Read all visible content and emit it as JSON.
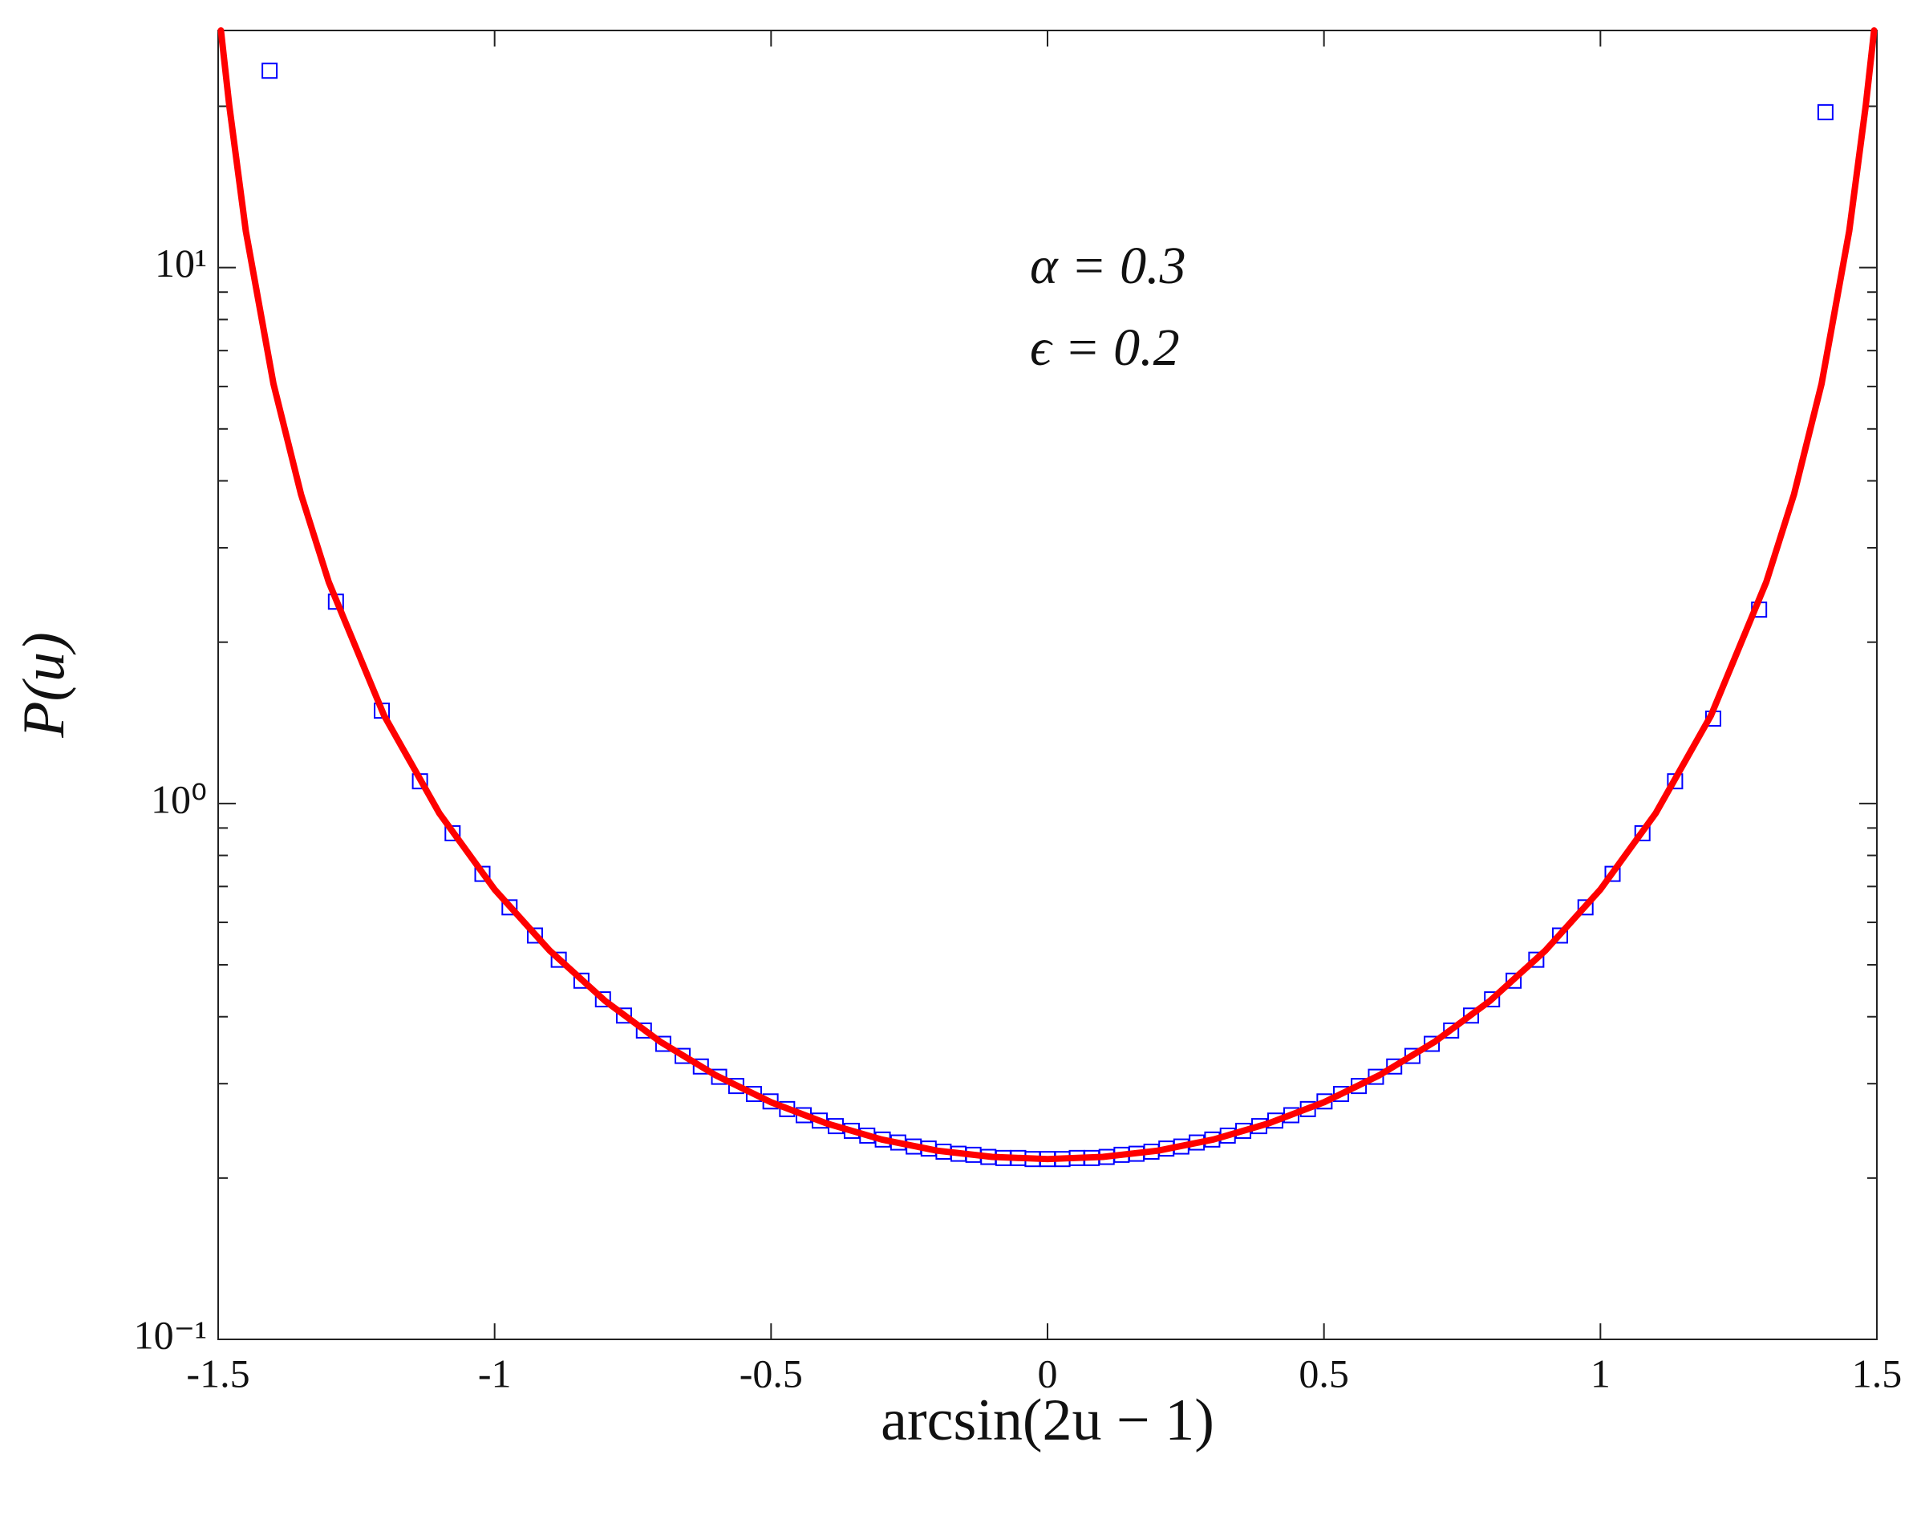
{
  "chart_data": {
    "type": "scatter",
    "xlabel": "arcsin(2u − 1)",
    "ylabel": "P(u)",
    "annotations": [
      "α = 0.3",
      "ϵ = 0.2"
    ],
    "xlim": [
      -1.5,
      1.5
    ],
    "xticks": [
      -1.5,
      -1,
      -0.5,
      0,
      0.5,
      1,
      1.5
    ],
    "ylim": [
      0.1,
      27.7
    ],
    "yscale": "log",
    "yticks": [
      {
        "value": 0.1,
        "label": "10⁻¹"
      },
      {
        "value": 1,
        "label": "10⁰"
      },
      {
        "value": 10,
        "label": "10¹"
      }
    ],
    "yminorticks": [
      0.2,
      0.3,
      0.4,
      0.5,
      0.6,
      0.7,
      0.8,
      0.9,
      2,
      3,
      4,
      5,
      6,
      7,
      8,
      9,
      20
    ],
    "series": [
      {
        "type": "scatter",
        "color": "#0000ff",
        "x": [
          -1.407,
          -1.287,
          -1.204,
          -1.135,
          -1.076,
          -1.022,
          -0.973,
          -0.927,
          -0.884,
          -0.843,
          -0.804,
          -0.766,
          -0.73,
          -0.695,
          -0.66,
          -0.627,
          -0.594,
          -0.563,
          -0.531,
          -0.501,
          -0.471,
          -0.441,
          -0.412,
          -0.383,
          -0.354,
          -0.326,
          -0.298,
          -0.27,
          -0.242,
          -0.215,
          -0.188,
          -0.161,
          -0.134,
          -0.107,
          -0.08,
          -0.053,
          -0.027,
          0,
          0.027,
          0.053,
          0.08,
          0.107,
          0.134,
          0.161,
          0.188,
          0.215,
          0.242,
          0.27,
          0.298,
          0.326,
          0.354,
          0.383,
          0.412,
          0.441,
          0.471,
          0.501,
          0.531,
          0.563,
          0.594,
          0.627,
          0.66,
          0.695,
          0.73,
          0.766,
          0.804,
          0.843,
          0.884,
          0.927,
          0.973,
          1.022,
          1.076,
          1.135,
          1.204,
          1.287,
          1.407
        ],
        "values": [
          23.3,
          2.38,
          1.49,
          1.1,
          0.88,
          0.739,
          0.64,
          0.567,
          0.511,
          0.467,
          0.431,
          0.402,
          0.377,
          0.356,
          0.338,
          0.323,
          0.309,
          0.297,
          0.287,
          0.278,
          0.269,
          0.262,
          0.256,
          0.25,
          0.245,
          0.24,
          0.236,
          0.233,
          0.229,
          0.227,
          0.224,
          0.222,
          0.221,
          0.219,
          0.218,
          0.218,
          0.217,
          0.217,
          0.217,
          0.218,
          0.218,
          0.219,
          0.221,
          0.222,
          0.224,
          0.227,
          0.229,
          0.233,
          0.236,
          0.24,
          0.245,
          0.25,
          0.256,
          0.262,
          0.269,
          0.278,
          0.287,
          0.297,
          0.309,
          0.323,
          0.338,
          0.356,
          0.377,
          0.402,
          0.431,
          0.467,
          0.511,
          0.567,
          0.64,
          0.739,
          0.88,
          1.1,
          1.44,
          2.3,
          19.5
        ]
      },
      {
        "type": "line",
        "color": "#ff0000",
        "x": [
          -1.495,
          -1.48,
          -1.45,
          -1.4,
          -1.35,
          -1.3,
          -1.2,
          -1.1,
          -1.0,
          -0.9,
          -0.8,
          -0.7,
          -0.6,
          -0.5,
          -0.4,
          -0.3,
          -0.2,
          -0.1,
          0,
          0.1,
          0.2,
          0.3,
          0.4,
          0.5,
          0.6,
          0.7,
          0.8,
          0.9,
          1.0,
          1.1,
          1.2,
          1.3,
          1.35,
          1.4,
          1.45,
          1.48,
          1.495
        ],
        "values": [
          27.7,
          20.1,
          11.7,
          6.07,
          3.77,
          2.59,
          1.46,
          0.959,
          0.691,
          0.531,
          0.428,
          0.359,
          0.311,
          0.277,
          0.253,
          0.236,
          0.225,
          0.219,
          0.217,
          0.219,
          0.225,
          0.236,
          0.253,
          0.277,
          0.311,
          0.359,
          0.428,
          0.531,
          0.691,
          0.959,
          1.46,
          2.59,
          3.77,
          6.07,
          11.7,
          20.1,
          27.7
        ]
      }
    ]
  }
}
